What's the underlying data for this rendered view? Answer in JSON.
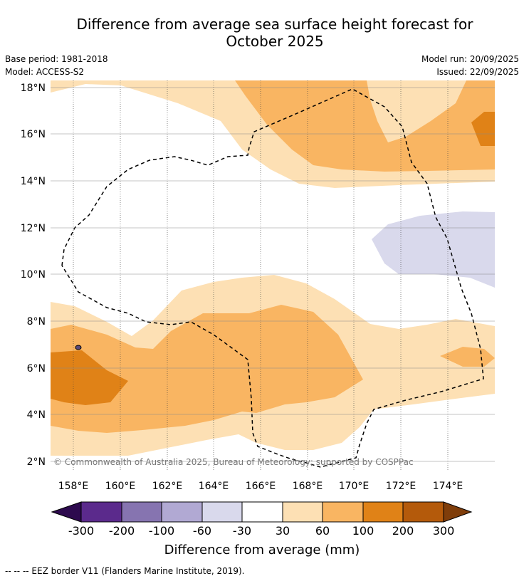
{
  "title": {
    "line1": "Difference from average sea surface height forecast for",
    "line2": "October 2025"
  },
  "meta": {
    "base_period": "Base period: 1981-2018",
    "model": "Model: ACCESS-S2",
    "model_run": "Model run: 20/09/2025",
    "issued": "Issued: 22/09/2025"
  },
  "map": {
    "lon_range": [
      157,
      176
    ],
    "lat_range": [
      1.5,
      18.3
    ],
    "lon_ticks": [
      "158°E",
      "160°E",
      "162°E",
      "164°E",
      "166°E",
      "168°E",
      "170°E",
      "172°E",
      "174°E"
    ],
    "lat_ticks": [
      "2°N",
      "4°N",
      "6°N",
      "8°N",
      "10°N",
      "12°N",
      "14°N",
      "16°N",
      "18°N"
    ],
    "copyright": "© Commonwealth of Australia 2025, Bureau of Meteorology; supported by COSPPac"
  },
  "colorbar": {
    "label": "Difference from average (mm)",
    "tick_labels": [
      "-300",
      "-200",
      "-100",
      "-60",
      "-30",
      "30",
      "60",
      "100",
      "200",
      "300"
    ],
    "colors": {
      "below_min": "#2d0a4e",
      "c1": "#5b2a8c",
      "c2": "#8674b0",
      "c3": "#b1a9d3",
      "c4": "#d9d9ec",
      "c5": "#ffffff",
      "c6": "#fde0b4",
      "c7": "#f9b562",
      "c8": "#e08217",
      "c9": "#b45a0b",
      "above_max": "#7f3d0a"
    }
  },
  "footnote": "-- -- -- EEZ border V11 (Flanders Marine Institute, 2019)."
}
